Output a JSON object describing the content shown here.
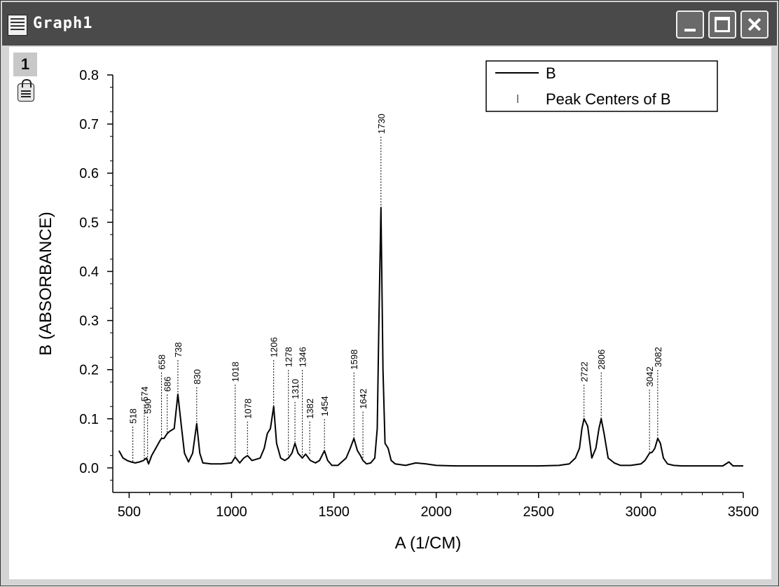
{
  "window": {
    "title": "Graph1",
    "layer_number": "1"
  },
  "chart_data": {
    "type": "line",
    "xlabel": "A (1/CM)",
    "ylabel": "B (ABSORBANCE)",
    "xlim": [
      420,
      3500
    ],
    "ylim": [
      -0.05,
      0.8
    ],
    "x_ticks": [
      500,
      1000,
      1500,
      2000,
      2500,
      3000,
      3500
    ],
    "y_ticks": [
      0.0,
      0.1,
      0.2,
      0.3,
      0.4,
      0.5,
      0.6,
      0.7,
      0.8
    ],
    "x_tick_labels": [
      "500",
      "1000",
      "1500",
      "2000",
      "2500",
      "3000",
      "3500"
    ],
    "y_tick_labels": [
      "0.0",
      "0.1",
      "0.2",
      "0.3",
      "0.4",
      "0.5",
      "0.6",
      "0.7",
      "0.8"
    ],
    "legend": {
      "position": "top-right",
      "entries": [
        "B",
        "Peak Centers of B"
      ]
    },
    "series": [
      {
        "name": "B",
        "x": [
          450,
          470,
          490,
          510,
          530,
          550,
          570,
          585,
          595,
          610,
          630,
          650,
          658,
          670,
          686,
          700,
          720,
          738,
          755,
          770,
          790,
          810,
          820,
          830,
          845,
          860,
          900,
          950,
          1000,
          1018,
          1040,
          1060,
          1078,
          1100,
          1140,
          1160,
          1175,
          1190,
          1206,
          1220,
          1240,
          1260,
          1278,
          1295,
          1310,
          1325,
          1346,
          1362,
          1385,
          1410,
          1430,
          1454,
          1470,
          1490,
          1520,
          1560,
          1580,
          1598,
          1615,
          1630,
          1642,
          1660,
          1680,
          1700,
          1712,
          1720,
          1730,
          1740,
          1750,
          1765,
          1780,
          1800,
          1850,
          1900,
          1950,
          2000,
          2100,
          2200,
          2300,
          2400,
          2500,
          2600,
          2650,
          2680,
          2700,
          2712,
          2722,
          2740,
          2760,
          2780,
          2795,
          2806,
          2820,
          2840,
          2870,
          2900,
          2950,
          3000,
          3020,
          3042,
          3055,
          3068,
          3082,
          3095,
          3110,
          3130,
          3160,
          3200,
          3300,
          3400,
          3430,
          3450,
          3500
        ],
        "y": [
          0.035,
          0.02,
          0.015,
          0.012,
          0.01,
          0.012,
          0.015,
          0.02,
          0.008,
          0.025,
          0.04,
          0.055,
          0.06,
          0.06,
          0.07,
          0.075,
          0.08,
          0.15,
          0.085,
          0.03,
          0.012,
          0.03,
          0.06,
          0.09,
          0.03,
          0.01,
          0.008,
          0.008,
          0.01,
          0.022,
          0.01,
          0.02,
          0.025,
          0.015,
          0.02,
          0.04,
          0.07,
          0.08,
          0.125,
          0.05,
          0.02,
          0.015,
          0.02,
          0.03,
          0.05,
          0.03,
          0.02,
          0.028,
          0.015,
          0.01,
          0.015,
          0.035,
          0.015,
          0.005,
          0.005,
          0.02,
          0.04,
          0.06,
          0.035,
          0.025,
          0.015,
          0.008,
          0.01,
          0.02,
          0.08,
          0.3,
          0.53,
          0.2,
          0.05,
          0.04,
          0.015,
          0.008,
          0.005,
          0.01,
          0.008,
          0.005,
          0.004,
          0.004,
          0.004,
          0.004,
          0.004,
          0.005,
          0.008,
          0.02,
          0.04,
          0.08,
          0.1,
          0.085,
          0.02,
          0.04,
          0.08,
          0.1,
          0.07,
          0.02,
          0.01,
          0.005,
          0.005,
          0.008,
          0.015,
          0.03,
          0.032,
          0.04,
          0.06,
          0.05,
          0.02,
          0.008,
          0.005,
          0.004,
          0.004,
          0.004,
          0.012,
          0.004,
          0.004
        ]
      }
    ],
    "peak_centers": {
      "name": "Peak Centers of B",
      "x": [
        518,
        574,
        590,
        658,
        686,
        738,
        830,
        1018,
        1078,
        1206,
        1278,
        1310,
        1346,
        1382,
        1454,
        1598,
        1642,
        1730,
        2722,
        2806,
        3042,
        3082
      ],
      "y": [
        0.012,
        0.018,
        0.01,
        0.06,
        0.07,
        0.15,
        0.09,
        0.022,
        0.025,
        0.125,
        0.02,
        0.05,
        0.02,
        0.028,
        0.035,
        0.06,
        0.015,
        0.53,
        0.1,
        0.1,
        0.032,
        0.06
      ],
      "labels": [
        "518",
        "574",
        "590",
        "658",
        "686",
        "738",
        "830",
        "1018",
        "1078",
        "1206",
        "1278",
        "1310",
        "1346",
        "1382",
        "1454",
        "1598",
        "1642",
        "1730",
        "2722",
        "2806",
        "3042",
        "3082"
      ],
      "label_heights": [
        0.09,
        0.135,
        0.11,
        0.2,
        0.155,
        0.225,
        0.17,
        0.175,
        0.1,
        0.225,
        0.205,
        0.14,
        0.205,
        0.1,
        0.105,
        0.2,
        0.12,
        0.68,
        0.175,
        0.2,
        0.165,
        0.205
      ]
    }
  }
}
